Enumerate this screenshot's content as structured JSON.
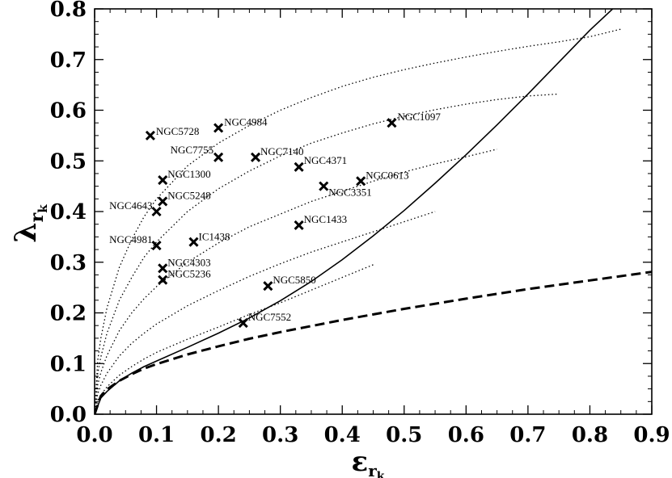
{
  "chart_data": {
    "type": "scatter",
    "xlabel": "ε",
    "xlabel_sub": "r",
    "xlabel_subsub": "k",
    "ylabel": "λ",
    "ylabel_sub": "r",
    "ylabel_subsub": "k",
    "xlim": [
      0.0,
      0.9
    ],
    "ylim": [
      0.0,
      0.8
    ],
    "xticks": [
      "0.0",
      "0.1",
      "0.2",
      "0.3",
      "0.4",
      "0.5",
      "0.6",
      "0.7",
      "0.8",
      "0.9"
    ],
    "yticks": [
      "0.0",
      "0.1",
      "0.2",
      "0.3",
      "0.4",
      "0.5",
      "0.6",
      "0.7",
      "0.8"
    ],
    "grid": false,
    "points": [
      {
        "name": "NGC5728",
        "x": 0.09,
        "y": 0.55
      },
      {
        "name": "NGC4984",
        "x": 0.2,
        "y": 0.565
      },
      {
        "name": "NGC1097",
        "x": 0.48,
        "y": 0.575
      },
      {
        "name": "NGC7755",
        "x": 0.2,
        "y": 0.507
      },
      {
        "name": "NGC7140",
        "x": 0.26,
        "y": 0.507
      },
      {
        "name": "NGC4371",
        "x": 0.33,
        "y": 0.488
      },
      {
        "name": "NGC1300",
        "x": 0.11,
        "y": 0.462
      },
      {
        "name": "NGC0613",
        "x": 0.43,
        "y": 0.46
      },
      {
        "name": "NGC3351",
        "x": 0.37,
        "y": 0.45
      },
      {
        "name": "NGC5248",
        "x": 0.11,
        "y": 0.42
      },
      {
        "name": "NGC4643",
        "x": 0.1,
        "y": 0.4
      },
      {
        "name": "NGC1433",
        "x": 0.33,
        "y": 0.373
      },
      {
        "name": "IC1438",
        "x": 0.16,
        "y": 0.34
      },
      {
        "name": "NGC4981",
        "x": 0.1,
        "y": 0.333
      },
      {
        "name": "NGC4303",
        "x": 0.11,
        "y": 0.288
      },
      {
        "name": "NGC5236",
        "x": 0.11,
        "y": 0.265
      },
      {
        "name": "NGC5850",
        "x": 0.28,
        "y": 0.253
      },
      {
        "name": "NGC7552",
        "x": 0.24,
        "y": 0.18
      }
    ],
    "lines": [
      {
        "style": "solid",
        "x": [
          0,
          0.01,
          0.02,
          0.04,
          0.06,
          0.08,
          0.1,
          0.15,
          0.2,
          0.25,
          0.3,
          0.35,
          0.4,
          0.45,
          0.5,
          0.55,
          0.6,
          0.65,
          0.7,
          0.75,
          0.8,
          0.85,
          0.88
        ],
        "y": [
          0,
          0.032,
          0.045,
          0.066,
          0.081,
          0.094,
          0.105,
          0.132,
          0.16,
          0.19,
          0.224,
          0.262,
          0.305,
          0.352,
          0.402,
          0.456,
          0.512,
          0.571,
          0.632,
          0.695,
          0.758,
          0.815,
          0.8
        ]
      },
      {
        "style": "dashed",
        "x": [
          0,
          0.01,
          0.02,
          0.04,
          0.06,
          0.08,
          0.1,
          0.15,
          0.2,
          0.25,
          0.3,
          0.4,
          0.5,
          0.6,
          0.7,
          0.8,
          0.9
        ],
        "y": [
          0,
          0.036,
          0.049,
          0.066,
          0.079,
          0.09,
          0.099,
          0.118,
          0.134,
          0.149,
          0.162,
          0.186,
          0.208,
          0.228,
          0.247,
          0.264,
          0.281
        ]
      },
      {
        "style": "dotted",
        "x": [
          0,
          0.005,
          0.01,
          0.02,
          0.04,
          0.06,
          0.08,
          0.1,
          0.15,
          0.2,
          0.25,
          0.3,
          0.35,
          0.4,
          0.45,
          0.5,
          0.55,
          0.6,
          0.65,
          0.7,
          0.75,
          0.8,
          0.85
        ],
        "y": [
          0,
          0.106,
          0.15,
          0.21,
          0.29,
          0.345,
          0.39,
          0.425,
          0.49,
          0.535,
          0.57,
          0.6,
          0.625,
          0.647,
          0.665,
          0.68,
          0.693,
          0.705,
          0.716,
          0.726,
          0.735,
          0.745,
          0.76
        ]
      },
      {
        "style": "dotted",
        "x": [
          0,
          0.005,
          0.01,
          0.02,
          0.04,
          0.06,
          0.08,
          0.1,
          0.15,
          0.2,
          0.25,
          0.3,
          0.35,
          0.4,
          0.45,
          0.5,
          0.55,
          0.6,
          0.65,
          0.7,
          0.75
        ],
        "y": [
          0,
          0.08,
          0.113,
          0.16,
          0.225,
          0.27,
          0.31,
          0.34,
          0.4,
          0.445,
          0.48,
          0.51,
          0.535,
          0.555,
          0.573,
          0.588,
          0.601,
          0.612,
          0.621,
          0.628,
          0.632
        ]
      },
      {
        "style": "dotted",
        "x": [
          0,
          0.005,
          0.01,
          0.02,
          0.04,
          0.06,
          0.08,
          0.1,
          0.15,
          0.2,
          0.25,
          0.3,
          0.35,
          0.4,
          0.45,
          0.5,
          0.55,
          0.6,
          0.65
        ],
        "y": [
          0,
          0.058,
          0.082,
          0.116,
          0.165,
          0.2,
          0.228,
          0.252,
          0.3,
          0.338,
          0.37,
          0.395,
          0.42,
          0.44,
          0.46,
          0.478,
          0.494,
          0.508,
          0.523
        ]
      },
      {
        "style": "dotted",
        "x": [
          0,
          0.005,
          0.01,
          0.02,
          0.04,
          0.06,
          0.08,
          0.1,
          0.15,
          0.2,
          0.25,
          0.3,
          0.35,
          0.4,
          0.45,
          0.5,
          0.55
        ],
        "y": [
          0,
          0.04,
          0.057,
          0.081,
          0.115,
          0.14,
          0.16,
          0.178,
          0.214,
          0.244,
          0.272,
          0.297,
          0.32,
          0.34,
          0.36,
          0.38,
          0.4
        ]
      },
      {
        "style": "dotted",
        "x": [
          0,
          0.005,
          0.01,
          0.02,
          0.04,
          0.06,
          0.08,
          0.1,
          0.15,
          0.2,
          0.25,
          0.3,
          0.35,
          0.4,
          0.45
        ],
        "y": [
          0,
          0.027,
          0.038,
          0.054,
          0.077,
          0.094,
          0.109,
          0.122,
          0.148,
          0.172,
          0.197,
          0.22,
          0.245,
          0.27,
          0.295
        ]
      }
    ]
  }
}
